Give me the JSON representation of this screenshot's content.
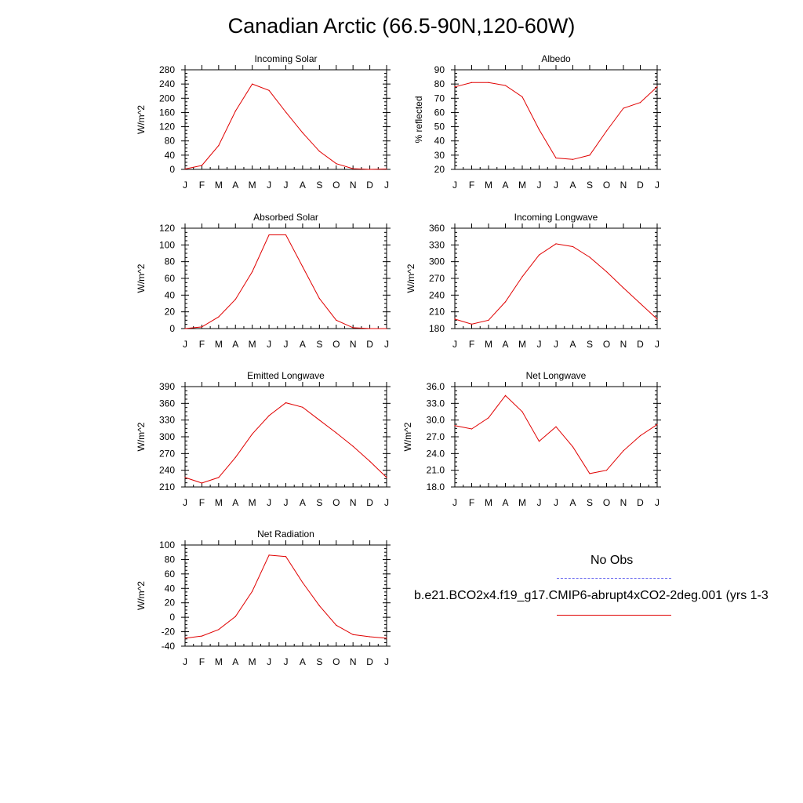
{
  "title": "Canadian Arctic (66.5-90N,120-60W)",
  "legend": {
    "obs_label": "No Obs",
    "case_label": "b.e21.BCO2x4.f19_g17.CMIP6-abrupt4xCO2-2deg.001 (yrs 1-3",
    "obs_color": "#6b6bf0",
    "case_color": "#e00000"
  },
  "chart_data": [
    {
      "type": "line",
      "title": "Incoming Solar",
      "ylabel": "W/m^2",
      "categories": [
        "J",
        "F",
        "M",
        "A",
        "M",
        "J",
        "J",
        "A",
        "S",
        "O",
        "N",
        "D",
        "J"
      ],
      "ylim": [
        0,
        280
      ],
      "yticks": [
        "0",
        "40",
        "80",
        "120",
        "160",
        "200",
        "240",
        "280"
      ],
      "series": [
        {
          "values": [
            1,
            11,
            67,
            164,
            240,
            222,
            161,
            103,
            51,
            16,
            2,
            0,
            1
          ],
          "color": "#e00000"
        }
      ]
    },
    {
      "type": "line",
      "title": "Albedo",
      "ylabel": "% reflected",
      "categories": [
        "J",
        "F",
        "M",
        "A",
        "M",
        "J",
        "J",
        "A",
        "S",
        "O",
        "N",
        "D",
        "J"
      ],
      "ylim": [
        20,
        90
      ],
      "yticks": [
        "20",
        "30",
        "40",
        "50",
        "60",
        "70",
        "80",
        "90"
      ],
      "series": [
        {
          "values": [
            78,
            81,
            81,
            79,
            71,
            48,
            28,
            27,
            30,
            47,
            63,
            67,
            78
          ],
          "color": "#e00000"
        }
      ]
    },
    {
      "type": "line",
      "title": "Absorbed Solar",
      "ylabel": "W/m^2",
      "categories": [
        "J",
        "F",
        "M",
        "A",
        "M",
        "J",
        "J",
        "A",
        "S",
        "O",
        "N",
        "D",
        "J"
      ],
      "ylim": [
        0,
        120
      ],
      "yticks": [
        "0",
        "20",
        "40",
        "60",
        "80",
        "100",
        "120"
      ],
      "series": [
        {
          "values": [
            0,
            2,
            14,
            35,
            68,
            112,
            112,
            74,
            36,
            10,
            1,
            0,
            0
          ],
          "color": "#e00000"
        }
      ]
    },
    {
      "type": "line",
      "title": "Incoming Longwave",
      "ylabel": "W/m^2",
      "categories": [
        "J",
        "F",
        "M",
        "A",
        "M",
        "J",
        "J",
        "A",
        "S",
        "O",
        "N",
        "D",
        "J"
      ],
      "ylim": [
        180,
        360
      ],
      "yticks": [
        "180",
        "210",
        "240",
        "270",
        "300",
        "330",
        "360"
      ],
      "series": [
        {
          "values": [
            197,
            188,
            195,
            228,
            273,
            312,
            332,
            327,
            308,
            282,
            253,
            225,
            197
          ],
          "color": "#e00000"
        }
      ]
    },
    {
      "type": "line",
      "title": "Emitted Longwave",
      "ylabel": "W/m^2",
      "categories": [
        "J",
        "F",
        "M",
        "A",
        "M",
        "J",
        "J",
        "A",
        "S",
        "O",
        "N",
        "D",
        "J"
      ],
      "ylim": [
        210,
        390
      ],
      "yticks": [
        "210",
        "240",
        "270",
        "300",
        "330",
        "360",
        "390"
      ],
      "series": [
        {
          "values": [
            227,
            217,
            227,
            263,
            305,
            338,
            361,
            353,
            330,
            307,
            283,
            256,
            227
          ],
          "color": "#e00000"
        }
      ]
    },
    {
      "type": "line",
      "title": "Net Longwave",
      "ylabel": "W/m^2",
      "categories": [
        "J",
        "F",
        "M",
        "A",
        "M",
        "J",
        "J",
        "A",
        "S",
        "O",
        "N",
        "D",
        "J"
      ],
      "ylim": [
        18,
        36
      ],
      "yticks": [
        "18.0",
        "21.0",
        "24.0",
        "27.0",
        "30.0",
        "33.0",
        "36.0"
      ],
      "series": [
        {
          "values": [
            29.0,
            28.4,
            30.4,
            34.4,
            31.5,
            26.2,
            28.8,
            25.2,
            20.4,
            21.0,
            24.5,
            27.2,
            29.2
          ],
          "color": "#e00000"
        }
      ]
    },
    {
      "type": "line",
      "title": "Net Radiation",
      "ylabel": "W/m^2",
      "categories": [
        "J",
        "F",
        "M",
        "A",
        "M",
        "J",
        "J",
        "A",
        "S",
        "O",
        "N",
        "D",
        "J"
      ],
      "ylim": [
        -40,
        100
      ],
      "yticks": [
        "-40",
        "-20",
        "0",
        "20",
        "40",
        "60",
        "80",
        "100"
      ],
      "series": [
        {
          "values": [
            -29,
            -26,
            -17,
            1,
            36,
            86,
            84,
            48,
            16,
            -11,
            -24,
            -27,
            -29
          ],
          "color": "#e00000"
        }
      ]
    }
  ]
}
